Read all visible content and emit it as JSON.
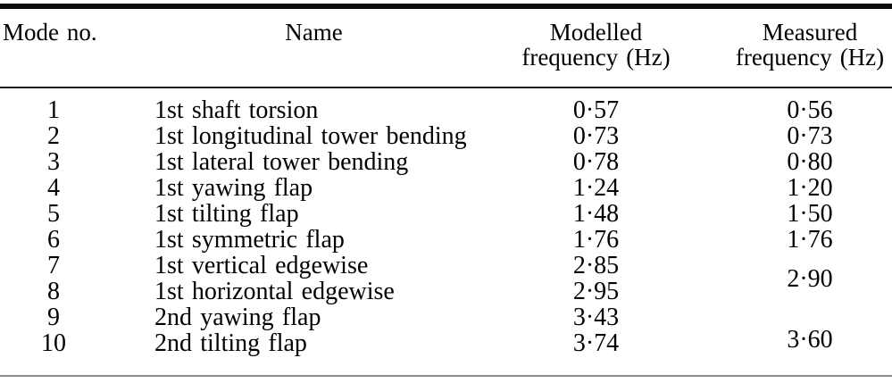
{
  "colors": {
    "background": "#ffffff",
    "text": "#000000"
  },
  "table": {
    "headers": {
      "mode": "Mode no.",
      "name": "Name",
      "modelled_line1": "Modelled",
      "modelled_line2": "frequency (Hz)",
      "measured_line1": "Measured",
      "measured_line2": "frequency (Hz)"
    },
    "rows": [
      {
        "mode": "1",
        "name": "1st shaft torsion",
        "modelled": "0·57",
        "measured": "0·56"
      },
      {
        "mode": "2",
        "name": "1st longitudinal tower bending",
        "modelled": "0·73",
        "measured": "0·73"
      },
      {
        "mode": "3",
        "name": "1st lateral tower bending",
        "modelled": "0·78",
        "measured": "0·80"
      },
      {
        "mode": "4",
        "name": "1st yawing flap",
        "modelled": "1·24",
        "measured": "1·20"
      },
      {
        "mode": "5",
        "name": "1st tilting flap",
        "modelled": "1·48",
        "measured": "1·50"
      },
      {
        "mode": "6",
        "name": "1st symmetric flap",
        "modelled": "1·76",
        "measured": "1·76"
      },
      {
        "mode": "7",
        "name": "1st vertical edgewise",
        "modelled": "2·85",
        "measured": "2·90",
        "measured_rowspan": 2
      },
      {
        "mode": "8",
        "name": "1st horizontal edgewise",
        "modelled": "2·95",
        "measured": null
      },
      {
        "mode": "9",
        "name": "2nd yawing flap",
        "modelled": "3·43",
        "measured": "3·60",
        "measured_rowspan": 2
      },
      {
        "mode": "10",
        "name": "2nd tilting flap",
        "modelled": "3·74",
        "measured": null
      }
    ]
  }
}
